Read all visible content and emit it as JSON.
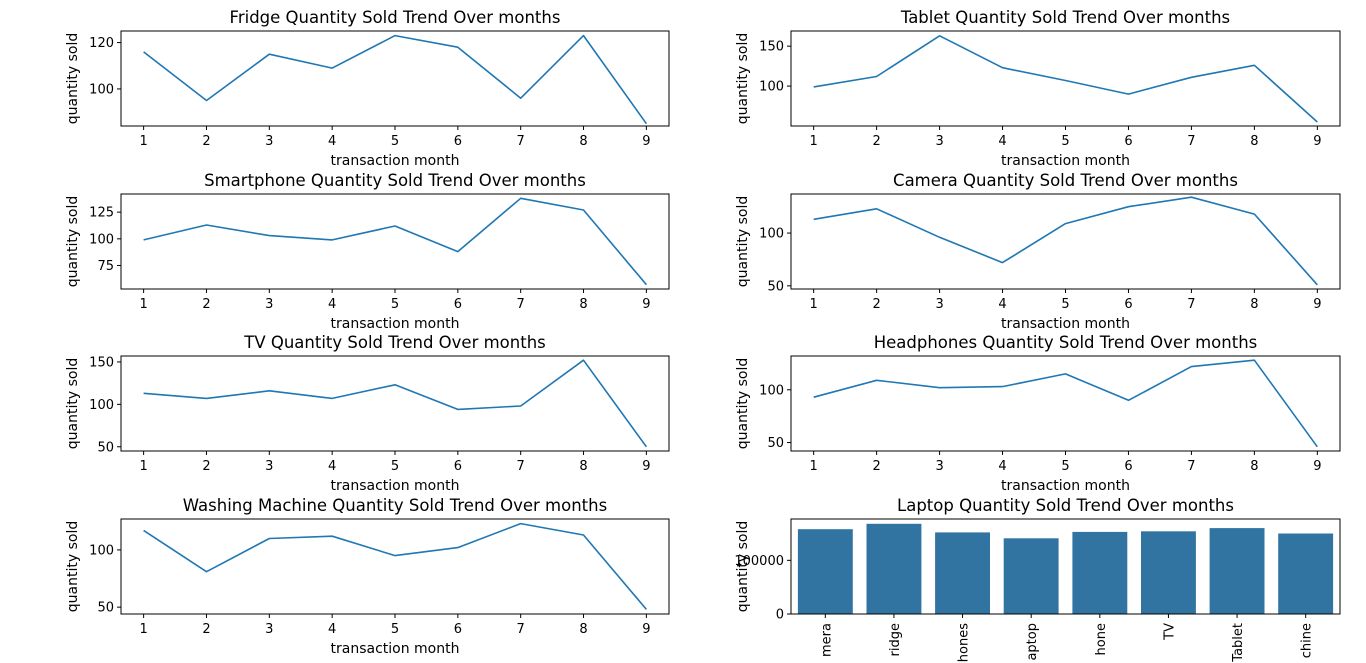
{
  "colors": {
    "line": "#1f77b4",
    "bar": "#3274a1",
    "axes": "#000000",
    "background": "#ffffff"
  },
  "chart_data": [
    {
      "type": "line",
      "title": "Fridge Quantity Sold Trend Over months",
      "xlabel": "transaction month",
      "ylabel": "quantity sold",
      "x": [
        1,
        2,
        3,
        4,
        5,
        6,
        7,
        8,
        9
      ],
      "series": [
        {
          "values": [
            116,
            95,
            115,
            109,
            123,
            118,
            96,
            123,
            85
          ]
        }
      ],
      "yticks": [
        100,
        120
      ],
      "ylim": [
        84,
        125
      ],
      "grid": false
    },
    {
      "type": "line",
      "title": "Tablet Quantity Sold Trend Over months",
      "xlabel": "transaction month",
      "ylabel": "quantity sold",
      "x": [
        1,
        2,
        3,
        4,
        5,
        6,
        7,
        8,
        9
      ],
      "series": [
        {
          "values": [
            99,
            112,
            163,
            123,
            107,
            90,
            111,
            126,
            55
          ]
        }
      ],
      "yticks": [
        100,
        150
      ],
      "ylim": [
        50,
        169
      ],
      "grid": false
    },
    {
      "type": "line",
      "title": "Smartphone Quantity Sold Trend Over months",
      "xlabel": "transaction month",
      "ylabel": "quantity sold",
      "x": [
        1,
        2,
        3,
        4,
        5,
        6,
        7,
        8,
        9
      ],
      "series": [
        {
          "values": [
            99,
            113,
            103,
            99,
            112,
            88,
            138,
            127,
            57
          ]
        }
      ],
      "yticks": [
        75,
        100,
        125
      ],
      "ylim": [
        53,
        142
      ],
      "grid": false
    },
    {
      "type": "line",
      "title": "Camera Quantity Sold Trend Over months",
      "xlabel": "transaction month",
      "ylabel": "quantity sold",
      "x": [
        1,
        2,
        3,
        4,
        5,
        6,
        7,
        8,
        9
      ],
      "series": [
        {
          "values": [
            113,
            123,
            96,
            72,
            109,
            125,
            134,
            118,
            51
          ]
        }
      ],
      "yticks": [
        50,
        100
      ],
      "ylim": [
        47,
        137
      ],
      "grid": false
    },
    {
      "type": "line",
      "title": "TV Quantity Sold Trend Over months",
      "xlabel": "transaction month",
      "ylabel": "quantity sold",
      "x": [
        1,
        2,
        3,
        4,
        5,
        6,
        7,
        8,
        9
      ],
      "series": [
        {
          "values": [
            113,
            107,
            116,
            107,
            123,
            94,
            98,
            152,
            50
          ]
        }
      ],
      "yticks": [
        50,
        100,
        150
      ],
      "ylim": [
        45,
        157
      ],
      "grid": false
    },
    {
      "type": "line",
      "title": "Headphones Quantity Sold Trend Over months",
      "xlabel": "transaction month",
      "ylabel": "quantity sold",
      "x": [
        1,
        2,
        3,
        4,
        5,
        6,
        7,
        8,
        9
      ],
      "series": [
        {
          "values": [
            93,
            109,
            102,
            103,
            115,
            90,
            122,
            128,
            46
          ]
        }
      ],
      "yticks": [
        50,
        100
      ],
      "ylim": [
        42,
        132
      ],
      "grid": false
    },
    {
      "type": "line",
      "title": "Washing Machine Quantity Sold Trend Over months",
      "xlabel": "transaction month",
      "ylabel": "quantity sold",
      "x": [
        1,
        2,
        3,
        4,
        5,
        6,
        7,
        8,
        9
      ],
      "series": [
        {
          "values": [
            117,
            81,
            110,
            112,
            95,
            102,
            123,
            113,
            48
          ]
        }
      ],
      "yticks": [
        50,
        100
      ],
      "ylim": [
        44,
        127
      ],
      "grid": false
    },
    {
      "type": "bar",
      "title": "Laptop Quantity Sold Trend Over months",
      "xlabel": "",
      "ylabel": "quantity sold",
      "categories": [
        "mera",
        "ridge",
        "hones",
        "aptop",
        "hone",
        "TV",
        "Tablet",
        "chine"
      ],
      "values": [
        158000,
        168000,
        152000,
        141000,
        153000,
        154000,
        160000,
        150000
      ],
      "yticks": [
        0,
        100000
      ],
      "ylim": [
        0,
        177000
      ],
      "grid": false
    }
  ]
}
